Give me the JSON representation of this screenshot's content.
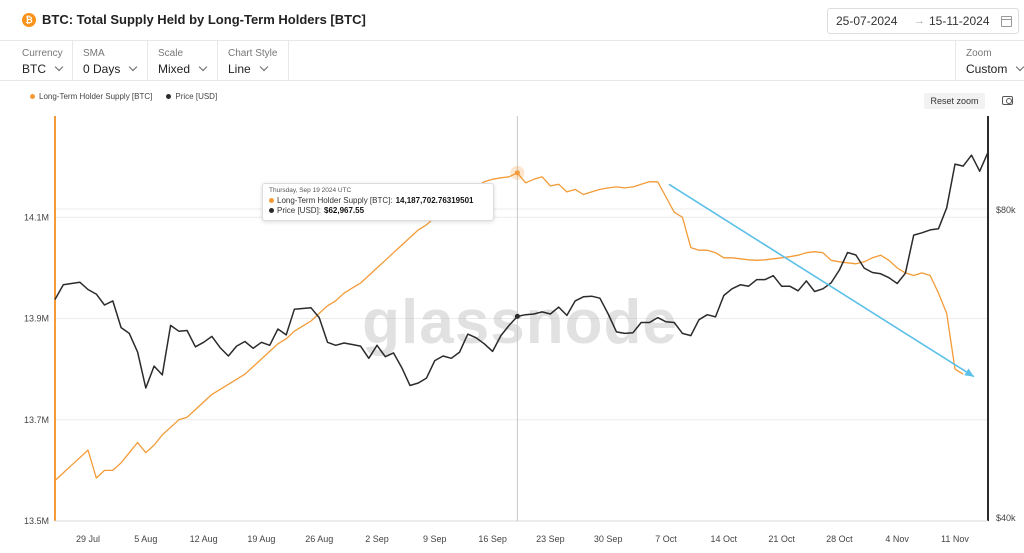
{
  "header": {
    "title": "BTC: Total Supply Held by Long-Term Holders [BTC]",
    "icon_letter": "₿",
    "date_from": "25-07-2024",
    "date_arrow": "→",
    "date_to": "15-11-2024"
  },
  "controls": {
    "currency": {
      "label": "Currency",
      "value": "BTC"
    },
    "sma": {
      "label": "SMA",
      "value": "0 Days"
    },
    "scale": {
      "label": "Scale",
      "value": "Mixed"
    },
    "chart_style": {
      "label": "Chart Style",
      "value": "Line"
    },
    "zoom": {
      "label": "Zoom",
      "value": "Custom"
    }
  },
  "toolbar": {
    "reset_zoom": "Reset zoom"
  },
  "watermark": "glassnode",
  "tooltip": {
    "date": "Thursday, Sep 19 2024 UTC",
    "supply_label": "Long-Term Holder Supply [BTC]:",
    "supply_value": "14,187,702.76319501",
    "price_label": "Price [USD]:",
    "price_value": "$62,967.55"
  },
  "colors": {
    "supply": "#f29b38",
    "price": "#2b2b2b",
    "annotation_arrow": "#5bc0e8"
  },
  "chart_data": {
    "type": "line",
    "legend": [
      "Long-Term Holder Supply [BTC]",
      "Price [USD]"
    ],
    "legend_position": "top-left",
    "grid": "horizontal",
    "x_ticks": [
      "29 Jul",
      "5 Aug",
      "12 Aug",
      "19 Aug",
      "26 Aug",
      "2 Sep",
      "9 Sep",
      "16 Sep",
      "23 Sep",
      "30 Sep",
      "7 Oct",
      "14 Oct",
      "21 Oct",
      "28 Oct",
      "4 Nov",
      "11 Nov"
    ],
    "x_start": "2024-07-25",
    "x_end": "2024-11-15",
    "y_left": {
      "ticks": [
        "13.5M",
        "13.7M",
        "13.9M",
        "14.1M"
      ],
      "tick_values": [
        13500000,
        13700000,
        13900000,
        14100000
      ],
      "range": [
        13500000,
        14300000
      ]
    },
    "y_right": {
      "ticks": [
        "$40k",
        "$80k"
      ],
      "tick_values": [
        40000,
        80000
      ],
      "scale": "log"
    },
    "hover_date": "2024-09-19",
    "series": [
      {
        "name": "Long-Term Holder Supply [BTC]",
        "axis": "left",
        "values": [
          [
            "2024-07-25",
            13580000
          ],
          [
            "2024-07-26",
            13595000
          ],
          [
            "2024-07-27",
            13610000
          ],
          [
            "2024-07-28",
            13625000
          ],
          [
            "2024-07-29",
            13640000
          ],
          [
            "2024-07-30",
            13585000
          ],
          [
            "2024-07-31",
            13600000
          ],
          [
            "2024-08-01",
            13600000
          ],
          [
            "2024-08-02",
            13615000
          ],
          [
            "2024-08-03",
            13635000
          ],
          [
            "2024-08-04",
            13655000
          ],
          [
            "2024-08-05",
            13635000
          ],
          [
            "2024-08-06",
            13650000
          ],
          [
            "2024-08-07",
            13670000
          ],
          [
            "2024-08-08",
            13685000
          ],
          [
            "2024-08-09",
            13700000
          ],
          [
            "2024-08-10",
            13705000
          ],
          [
            "2024-08-11",
            13720000
          ],
          [
            "2024-08-12",
            13735000
          ],
          [
            "2024-08-13",
            13750000
          ],
          [
            "2024-08-14",
            13760000
          ],
          [
            "2024-08-15",
            13770000
          ],
          [
            "2024-08-16",
            13780000
          ],
          [
            "2024-08-17",
            13790000
          ],
          [
            "2024-08-18",
            13805000
          ],
          [
            "2024-08-19",
            13820000
          ],
          [
            "2024-08-20",
            13835000
          ],
          [
            "2024-08-21",
            13850000
          ],
          [
            "2024-08-22",
            13860000
          ],
          [
            "2024-08-23",
            13875000
          ],
          [
            "2024-08-24",
            13885000
          ],
          [
            "2024-08-25",
            13895000
          ],
          [
            "2024-08-26",
            13910000
          ],
          [
            "2024-08-27",
            13925000
          ],
          [
            "2024-08-28",
            13935000
          ],
          [
            "2024-08-29",
            13950000
          ],
          [
            "2024-08-30",
            13960000
          ],
          [
            "2024-08-31",
            13970000
          ],
          [
            "2024-09-01",
            13985000
          ],
          [
            "2024-09-02",
            14000000
          ],
          [
            "2024-09-03",
            14015000
          ],
          [
            "2024-09-04",
            14030000
          ],
          [
            "2024-09-05",
            14045000
          ],
          [
            "2024-09-06",
            14060000
          ],
          [
            "2024-09-07",
            14075000
          ],
          [
            "2024-09-08",
            14085000
          ],
          [
            "2024-09-09",
            14100000
          ],
          [
            "2024-09-10",
            14110000
          ],
          [
            "2024-09-11",
            14120000
          ],
          [
            "2024-09-12",
            14135000
          ],
          [
            "2024-09-13",
            14150000
          ],
          [
            "2024-09-14",
            14160000
          ],
          [
            "2024-09-15",
            14170000
          ],
          [
            "2024-09-16",
            14175000
          ],
          [
            "2024-09-17",
            14178000
          ],
          [
            "2024-09-18",
            14180000
          ],
          [
            "2024-09-19",
            14187703
          ],
          [
            "2024-09-20",
            14168000
          ],
          [
            "2024-09-21",
            14175000
          ],
          [
            "2024-09-22",
            14180000
          ],
          [
            "2024-09-23",
            14162000
          ],
          [
            "2024-09-24",
            14165000
          ],
          [
            "2024-09-25",
            14150000
          ],
          [
            "2024-09-26",
            14155000
          ],
          [
            "2024-09-27",
            14145000
          ],
          [
            "2024-09-28",
            14150000
          ],
          [
            "2024-09-29",
            14155000
          ],
          [
            "2024-09-30",
            14158000
          ],
          [
            "2024-10-01",
            14160000
          ],
          [
            "2024-10-02",
            14158000
          ],
          [
            "2024-10-03",
            14160000
          ],
          [
            "2024-10-04",
            14165000
          ],
          [
            "2024-10-05",
            14170000
          ],
          [
            "2024-10-06",
            14170000
          ],
          [
            "2024-10-07",
            14140000
          ],
          [
            "2024-10-08",
            14110000
          ],
          [
            "2024-10-09",
            14100000
          ],
          [
            "2024-10-10",
            14040000
          ],
          [
            "2024-10-11",
            14035000
          ],
          [
            "2024-10-12",
            14035000
          ],
          [
            "2024-10-13",
            14030000
          ],
          [
            "2024-10-14",
            14020000
          ],
          [
            "2024-10-15",
            14020000
          ],
          [
            "2024-10-16",
            14018000
          ],
          [
            "2024-10-17",
            14016000
          ],
          [
            "2024-10-18",
            14015000
          ],
          [
            "2024-10-19",
            14016000
          ],
          [
            "2024-10-20",
            14018000
          ],
          [
            "2024-10-21",
            14020000
          ],
          [
            "2024-10-22",
            14022000
          ],
          [
            "2024-10-23",
            14025000
          ],
          [
            "2024-10-24",
            14030000
          ],
          [
            "2024-10-25",
            14032000
          ],
          [
            "2024-10-26",
            14030000
          ],
          [
            "2024-10-27",
            14015000
          ],
          [
            "2024-10-28",
            14012000
          ],
          [
            "2024-10-29",
            14010000
          ],
          [
            "2024-10-30",
            14008000
          ],
          [
            "2024-10-31",
            14012000
          ],
          [
            "2024-11-01",
            14020000
          ],
          [
            "2024-11-02",
            14025000
          ],
          [
            "2024-11-03",
            14015000
          ],
          [
            "2024-11-04",
            14000000
          ],
          [
            "2024-11-05",
            13990000
          ],
          [
            "2024-11-06",
            13985000
          ],
          [
            "2024-11-07",
            13990000
          ],
          [
            "2024-11-08",
            13985000
          ],
          [
            "2024-11-09",
            13950000
          ],
          [
            "2024-11-10",
            13910000
          ],
          [
            "2024-11-11",
            13800000
          ],
          [
            "2024-11-12",
            13790000
          ]
        ]
      },
      {
        "name": "Price [USD]",
        "axis": "right",
        "values": [
          [
            "2024-07-25",
            65400
          ],
          [
            "2024-07-26",
            67600
          ],
          [
            "2024-07-27",
            67800
          ],
          [
            "2024-07-28",
            68000
          ],
          [
            "2024-07-29",
            66900
          ],
          [
            "2024-07-30",
            66200
          ],
          [
            "2024-07-31",
            64600
          ],
          [
            "2024-08-01",
            65200
          ],
          [
            "2024-08-02",
            61400
          ],
          [
            "2024-08-03",
            60600
          ],
          [
            "2024-08-04",
            58100
          ],
          [
            "2024-08-05",
            53600
          ],
          [
            "2024-08-06",
            56300
          ],
          [
            "2024-08-07",
            55200
          ],
          [
            "2024-08-08",
            61700
          ],
          [
            "2024-08-09",
            60900
          ],
          [
            "2024-08-10",
            61000
          ],
          [
            "2024-08-11",
            58800
          ],
          [
            "2024-08-12",
            59400
          ],
          [
            "2024-08-13",
            60200
          ],
          [
            "2024-08-14",
            58700
          ],
          [
            "2024-08-15",
            57600
          ],
          [
            "2024-08-16",
            58900
          ],
          [
            "2024-08-17",
            59500
          ],
          [
            "2024-08-18",
            58600
          ],
          [
            "2024-08-19",
            59400
          ],
          [
            "2024-08-20",
            59000
          ],
          [
            "2024-08-21",
            61200
          ],
          [
            "2024-08-22",
            60400
          ],
          [
            "2024-08-23",
            64000
          ],
          [
            "2024-08-24",
            64100
          ],
          [
            "2024-08-25",
            64200
          ],
          [
            "2024-08-26",
            62800
          ],
          [
            "2024-08-27",
            59400
          ],
          [
            "2024-08-28",
            59000
          ],
          [
            "2024-08-29",
            59300
          ],
          [
            "2024-08-30",
            59100
          ],
          [
            "2024-08-31",
            58900
          ],
          [
            "2024-09-01",
            57300
          ],
          [
            "2024-09-02",
            59000
          ],
          [
            "2024-09-03",
            57500
          ],
          [
            "2024-09-04",
            58000
          ],
          [
            "2024-09-05",
            56100
          ],
          [
            "2024-09-06",
            53900
          ],
          [
            "2024-09-07",
            54200
          ],
          [
            "2024-09-08",
            54800
          ],
          [
            "2024-09-09",
            57000
          ],
          [
            "2024-09-10",
            57600
          ],
          [
            "2024-09-11",
            57300
          ],
          [
            "2024-09-12",
            58100
          ],
          [
            "2024-09-13",
            60500
          ],
          [
            "2024-09-14",
            60000
          ],
          [
            "2024-09-15",
            59200
          ],
          [
            "2024-09-16",
            58200
          ],
          [
            "2024-09-17",
            60300
          ],
          [
            "2024-09-18",
            61700
          ],
          [
            "2024-09-19",
            62968
          ],
          [
            "2024-09-20",
            63200
          ],
          [
            "2024-09-21",
            63300
          ],
          [
            "2024-09-22",
            63600
          ],
          [
            "2024-09-23",
            63300
          ],
          [
            "2024-09-24",
            64300
          ],
          [
            "2024-09-25",
            63100
          ],
          [
            "2024-09-26",
            65200
          ],
          [
            "2024-09-27",
            65800
          ],
          [
            "2024-09-28",
            65900
          ],
          [
            "2024-09-29",
            65600
          ],
          [
            "2024-09-30",
            63300
          ],
          [
            "2024-10-01",
            60800
          ],
          [
            "2024-10-02",
            60600
          ],
          [
            "2024-10-03",
            60700
          ],
          [
            "2024-10-04",
            62100
          ],
          [
            "2024-10-05",
            62100
          ],
          [
            "2024-10-06",
            62800
          ],
          [
            "2024-10-07",
            62200
          ],
          [
            "2024-10-08",
            62100
          ],
          [
            "2024-10-09",
            60600
          ],
          [
            "2024-10-10",
            60300
          ],
          [
            "2024-10-11",
            62500
          ],
          [
            "2024-10-12",
            63200
          ],
          [
            "2024-10-13",
            62900
          ],
          [
            "2024-10-14",
            66000
          ],
          [
            "2024-10-15",
            67000
          ],
          [
            "2024-10-16",
            67600
          ],
          [
            "2024-10-17",
            67400
          ],
          [
            "2024-10-18",
            68400
          ],
          [
            "2024-10-19",
            68400
          ],
          [
            "2024-10-20",
            69000
          ],
          [
            "2024-10-21",
            67400
          ],
          [
            "2024-10-22",
            67400
          ],
          [
            "2024-10-23",
            66700
          ],
          [
            "2024-10-24",
            68200
          ],
          [
            "2024-10-25",
            66600
          ],
          [
            "2024-10-26",
            67000
          ],
          [
            "2024-10-27",
            67900
          ],
          [
            "2024-10-28",
            69900
          ],
          [
            "2024-10-29",
            72700
          ],
          [
            "2024-10-30",
            72300
          ],
          [
            "2024-10-31",
            70200
          ],
          [
            "2024-11-01",
            69500
          ],
          [
            "2024-11-02",
            69300
          ],
          [
            "2024-11-03",
            68700
          ],
          [
            "2024-11-04",
            67800
          ],
          [
            "2024-11-05",
            69400
          ],
          [
            "2024-11-06",
            75600
          ],
          [
            "2024-11-07",
            76000
          ],
          [
            "2024-11-08",
            76500
          ],
          [
            "2024-11-09",
            76700
          ],
          [
            "2024-11-10",
            80400
          ],
          [
            "2024-11-11",
            88700
          ],
          [
            "2024-11-12",
            88300
          ],
          [
            "2024-11-13",
            90500
          ],
          [
            "2024-11-14",
            87300
          ],
          [
            "2024-11-15",
            91100
          ]
        ]
      }
    ],
    "annotation_arrow": {
      "from": [
        "2024-10-07",
        14165000
      ],
      "to": [
        "2024-11-15",
        13785000
      ]
    }
  }
}
